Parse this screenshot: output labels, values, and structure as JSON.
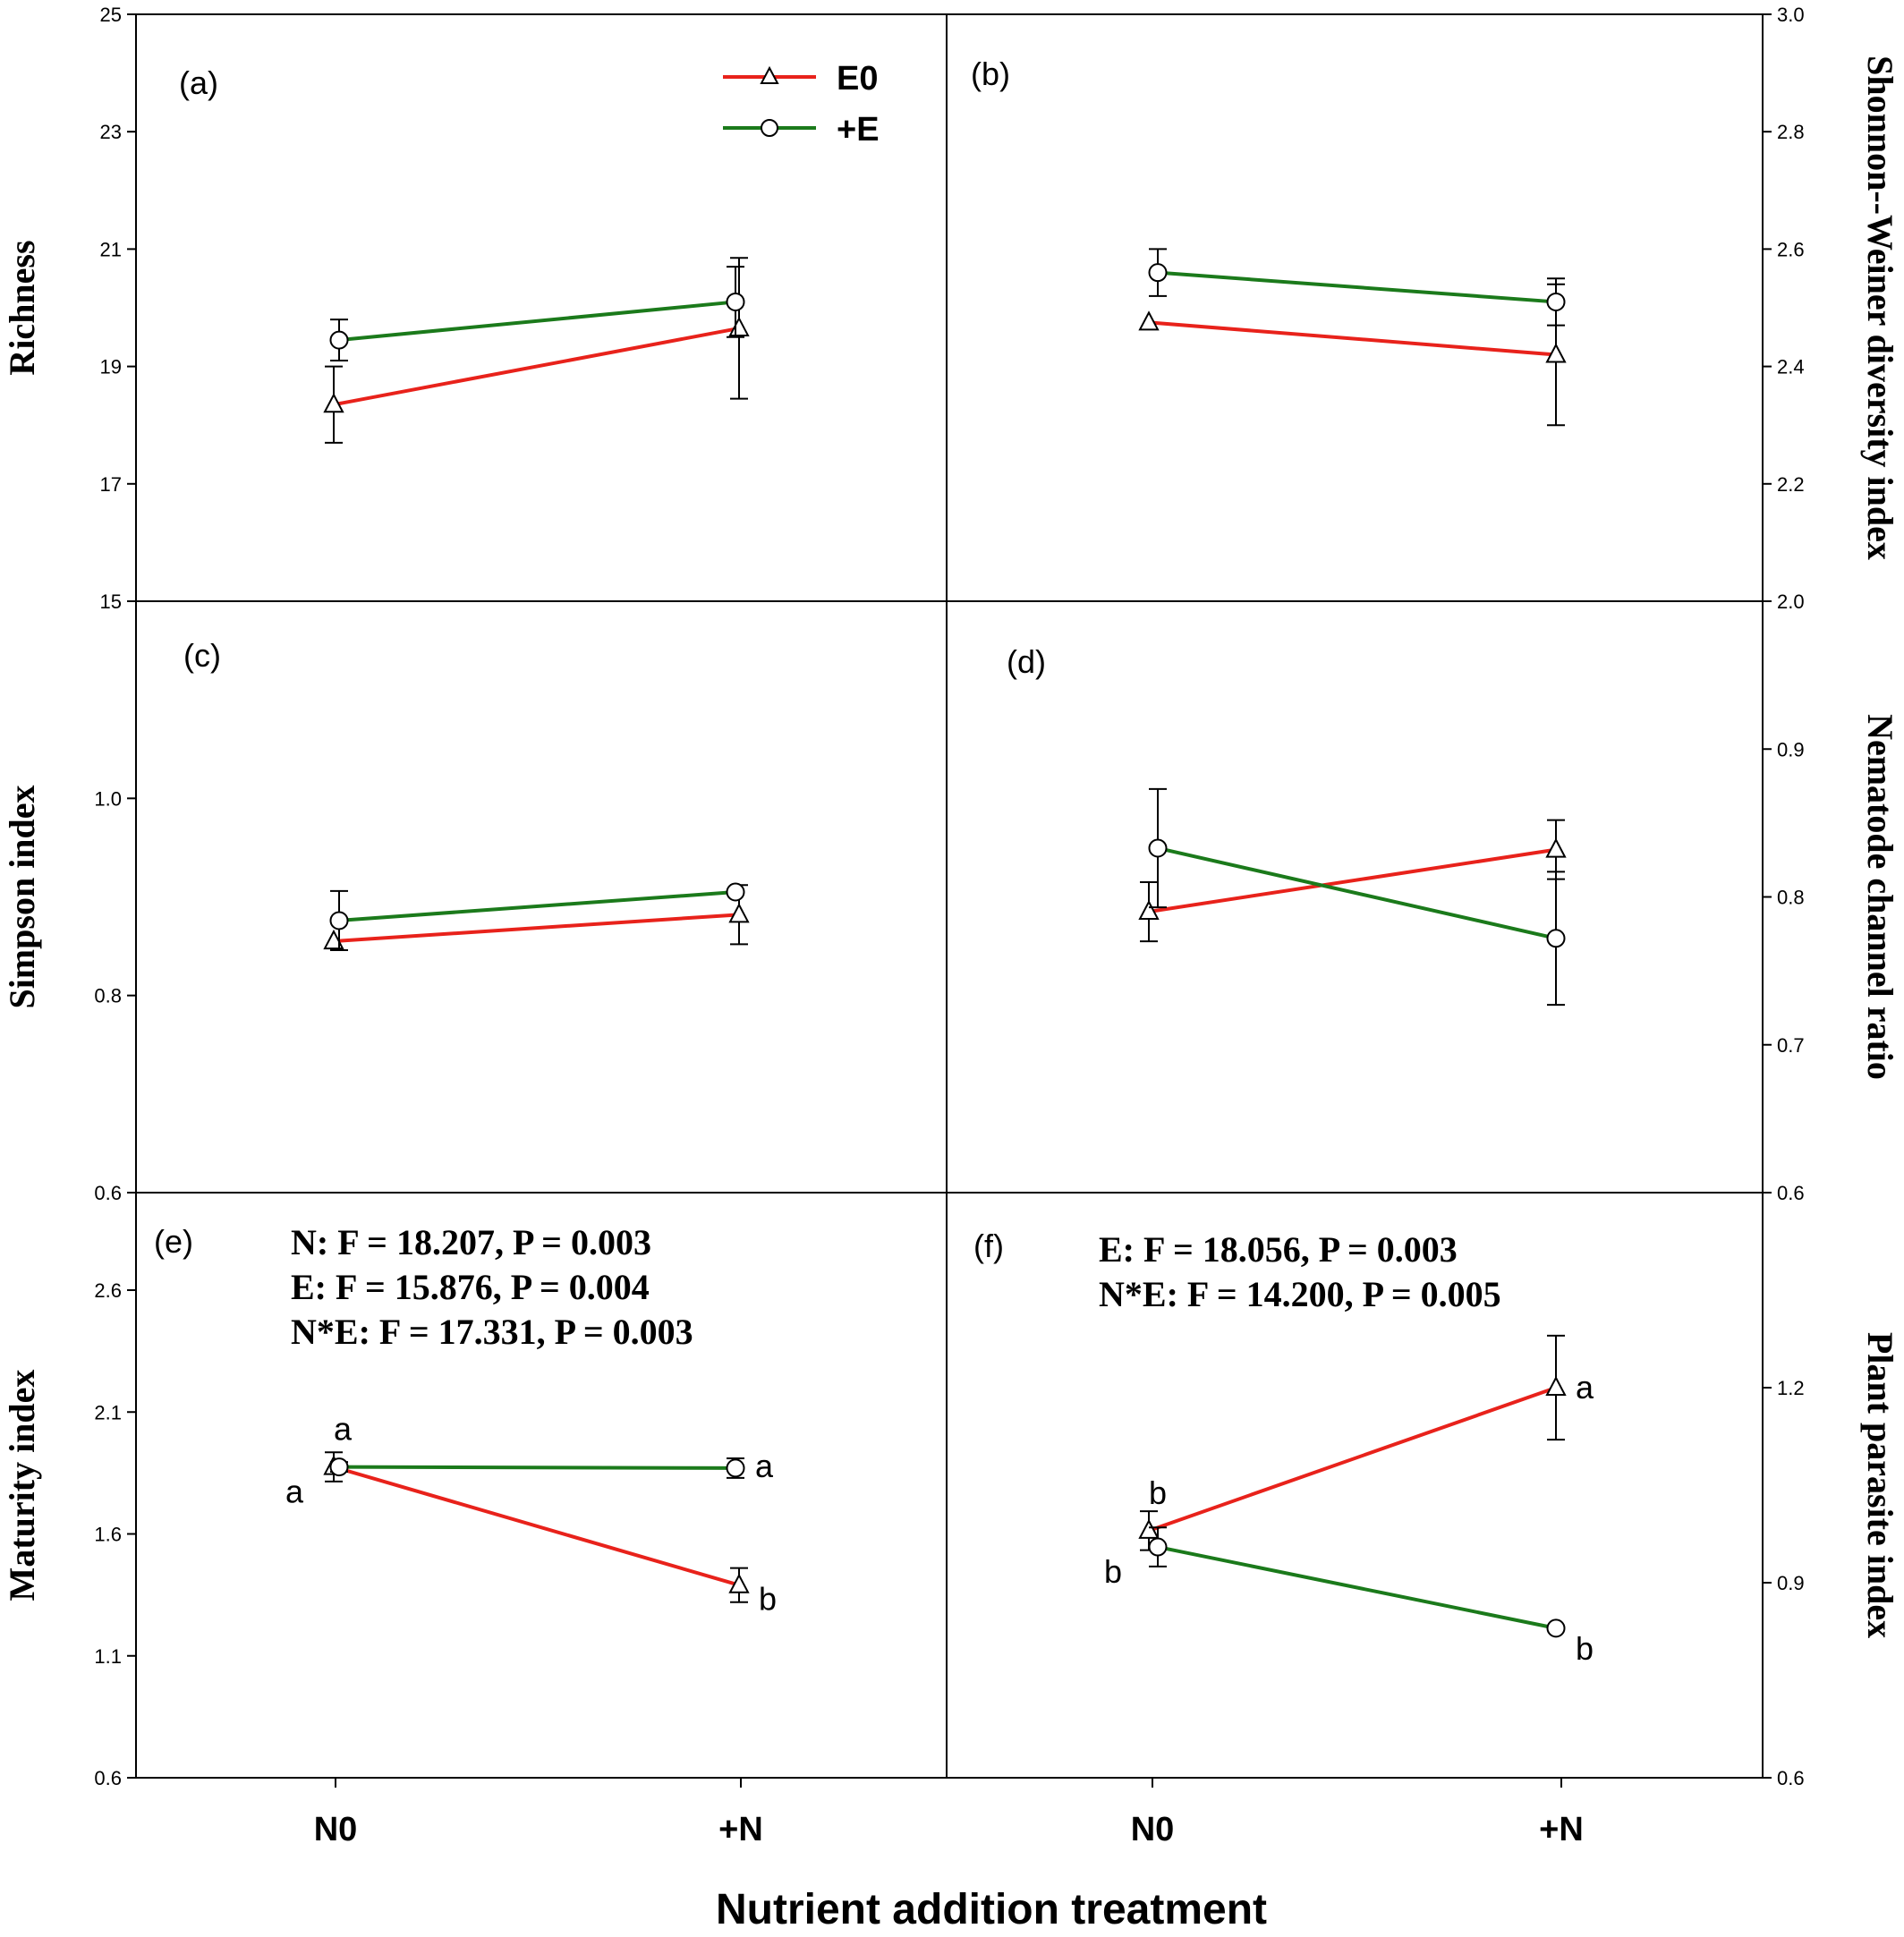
{
  "x_axis_title": "Nutrient addition treatment",
  "categories": [
    "N0",
    "+N"
  ],
  "legend": [
    {
      "label": "E0",
      "color": "#e8221b",
      "marker": "triangle"
    },
    {
      "label": "+E",
      "color": "#1b7a1b",
      "marker": "circle"
    }
  ],
  "chart_data": [
    {
      "type": "line",
      "panel_label": "(a)",
      "ylabel": "Richness",
      "ylim": [
        15,
        25
      ],
      "yticks": [
        "15",
        "17",
        "19",
        "21",
        "23",
        "25"
      ],
      "categories": [
        "N0",
        "+N"
      ],
      "series": [
        {
          "name": "E0",
          "values": [
            18.35,
            19.65
          ],
          "errors": [
            0.65,
            1.2
          ]
        },
        {
          "name": "+E",
          "values": [
            19.45,
            20.1
          ],
          "errors": [
            0.35,
            0.6
          ]
        }
      ]
    },
    {
      "type": "line",
      "panel_label": "(b)",
      "ylabel": "Shonnon--Weiner diversity index",
      "ylim": [
        2.0,
        3.0
      ],
      "yticks": [
        "2.0",
        "2.2",
        "2.4",
        "2.6",
        "2.8",
        "3.0"
      ],
      "categories": [
        "N0",
        "+N"
      ],
      "series": [
        {
          "name": "E0",
          "values": [
            2.475,
            2.42
          ],
          "errors": [
            0.0,
            0.12
          ]
        },
        {
          "name": "+E",
          "values": [
            2.56,
            2.51
          ],
          "errors": [
            0.04,
            0.04
          ]
        }
      ]
    },
    {
      "type": "line",
      "panel_label": "(c)",
      "ylabel": "Simpson index",
      "ylim": [
        0.6,
        1.2
      ],
      "yticks": [
        "0.6",
        "0.8",
        "1.0"
      ],
      "categories": [
        "N0",
        "+N"
      ],
      "series": [
        {
          "name": "E0",
          "values": [
            0.855,
            0.882
          ],
          "errors": [
            0.0,
            0.03
          ]
        },
        {
          "name": "+E",
          "values": [
            0.876,
            0.905
          ],
          "errors": [
            0.03,
            0.0
          ]
        }
      ]
    },
    {
      "type": "line",
      "panel_label": "(d)",
      "ylabel": "Nematode channel ratio",
      "ylim": [
        0.6,
        1.0
      ],
      "yticks": [
        "0.6",
        "0.7",
        "0.8",
        "0.9"
      ],
      "categories": [
        "N0",
        "+N"
      ],
      "series": [
        {
          "name": "E0",
          "values": [
            0.79,
            0.832
          ],
          "errors": [
            0.02,
            0.02
          ]
        },
        {
          "name": "+E",
          "values": [
            0.833,
            0.772
          ],
          "errors": [
            0.04,
            0.045
          ]
        }
      ]
    },
    {
      "type": "line",
      "panel_label": "(e)",
      "ylabel": "Maturity index",
      "ylim": [
        0.6,
        3.0
      ],
      "yticks": [
        "0.6",
        "1.1",
        "1.6",
        "2.1",
        "2.6"
      ],
      "categories": [
        "N0",
        "+N"
      ],
      "annotations": [
        "N: F = 18.207, P = 0.003",
        "E: F = 15.876, P = 0.004",
        "N*E: F = 17.331, P = 0.003"
      ],
      "series": [
        {
          "name": "E0",
          "values": [
            1.875,
            1.39
          ],
          "errors": [
            0.06,
            0.07
          ],
          "letters": [
            "a",
            "b"
          ]
        },
        {
          "name": "+E",
          "values": [
            1.875,
            1.87
          ],
          "errors": [
            0.02,
            0.04
          ],
          "letters": [
            "a",
            "a"
          ]
        }
      ]
    },
    {
      "type": "line",
      "panel_label": "(f)",
      "ylabel": "Plant parasite index",
      "ylim": [
        0.6,
        1.5
      ],
      "yticks": [
        "0.6",
        "0.9",
        "1.2"
      ],
      "categories": [
        "N0",
        "+N"
      ],
      "annotations": [
        "E: F = 18.056, P = 0.003",
        "N*E: F = 14.200, P = 0.005"
      ],
      "series": [
        {
          "name": "E0",
          "values": [
            0.98,
            1.2
          ],
          "errors": [
            0.03,
            0.08
          ],
          "letters": [
            "b",
            "a"
          ]
        },
        {
          "name": "+E",
          "values": [
            0.955,
            0.83
          ],
          "errors": [
            0.03,
            0.0
          ],
          "letters": [
            "b",
            "b"
          ]
        }
      ]
    }
  ]
}
